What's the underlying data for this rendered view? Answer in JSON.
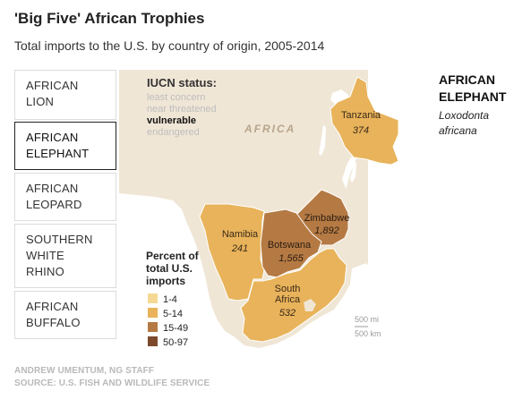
{
  "header": {
    "title": "'Big Five' African Trophies",
    "subtitle": "Total imports to the U.S. by country of origin, 2005-2014"
  },
  "tabs": [
    {
      "line1": "AFRICAN",
      "line2": "LION",
      "line3": ""
    },
    {
      "line1": "AFRICAN",
      "line2": "ELEPHANT",
      "line3": ""
    },
    {
      "line1": "AFRICAN",
      "line2": "LEOPARD",
      "line3": ""
    },
    {
      "line1": "SOUTHERN",
      "line2": "WHITE",
      "line3": "RHINO"
    },
    {
      "line1": "AFRICAN",
      "line2": "BUFFALO",
      "line3": ""
    }
  ],
  "active_tab": 1,
  "iucn": {
    "heading": "IUCN status:",
    "statuses": [
      "least concern",
      "near threatened",
      "vulnerable",
      "endangered"
    ],
    "active_status": "vulnerable"
  },
  "map": {
    "continent_label": "AFRICA",
    "countries": [
      {
        "name": "Tanzania",
        "imports": "374",
        "percent_class": "5-14",
        "color": "#e8b35a"
      },
      {
        "name": "Namibia",
        "imports": "241",
        "percent_class": "5-14",
        "color": "#e8b35a"
      },
      {
        "name": "Zimbabwe",
        "imports": "1,892",
        "percent_class": "15-49",
        "color": "#b57a44"
      },
      {
        "name": "Botswana",
        "imports": "1,565",
        "percent_class": "15-49",
        "color": "#b57a44"
      },
      {
        "name": "South Africa",
        "name_line1": "South",
        "name_line2": "Africa",
        "imports": "532",
        "percent_class": "5-14",
        "color": "#e8b35a"
      }
    ],
    "land_color": "#f0e6d6",
    "scale": {
      "mi": "500 mi",
      "km": "500 km"
    }
  },
  "legend": {
    "title_lines": [
      "Percent of",
      "total U.S.",
      "imports"
    ],
    "items": [
      {
        "label": "1-4",
        "color": "#f5d894"
      },
      {
        "label": "5-14",
        "color": "#e8b35a"
      },
      {
        "label": "15-49",
        "color": "#b57a44"
      },
      {
        "label": "50-97",
        "color": "#7d4a2c"
      }
    ]
  },
  "species": {
    "title_line1": "AFRICAN",
    "title_line2": "ELEPHANT",
    "scientific_line1": "Loxodonta",
    "scientific_line2": "africana"
  },
  "credits": {
    "author": "ANDREW UMENTUM, NG STAFF",
    "source": "SOURCE: U.S. FISH AND WILDLIFE SERVICE"
  }
}
